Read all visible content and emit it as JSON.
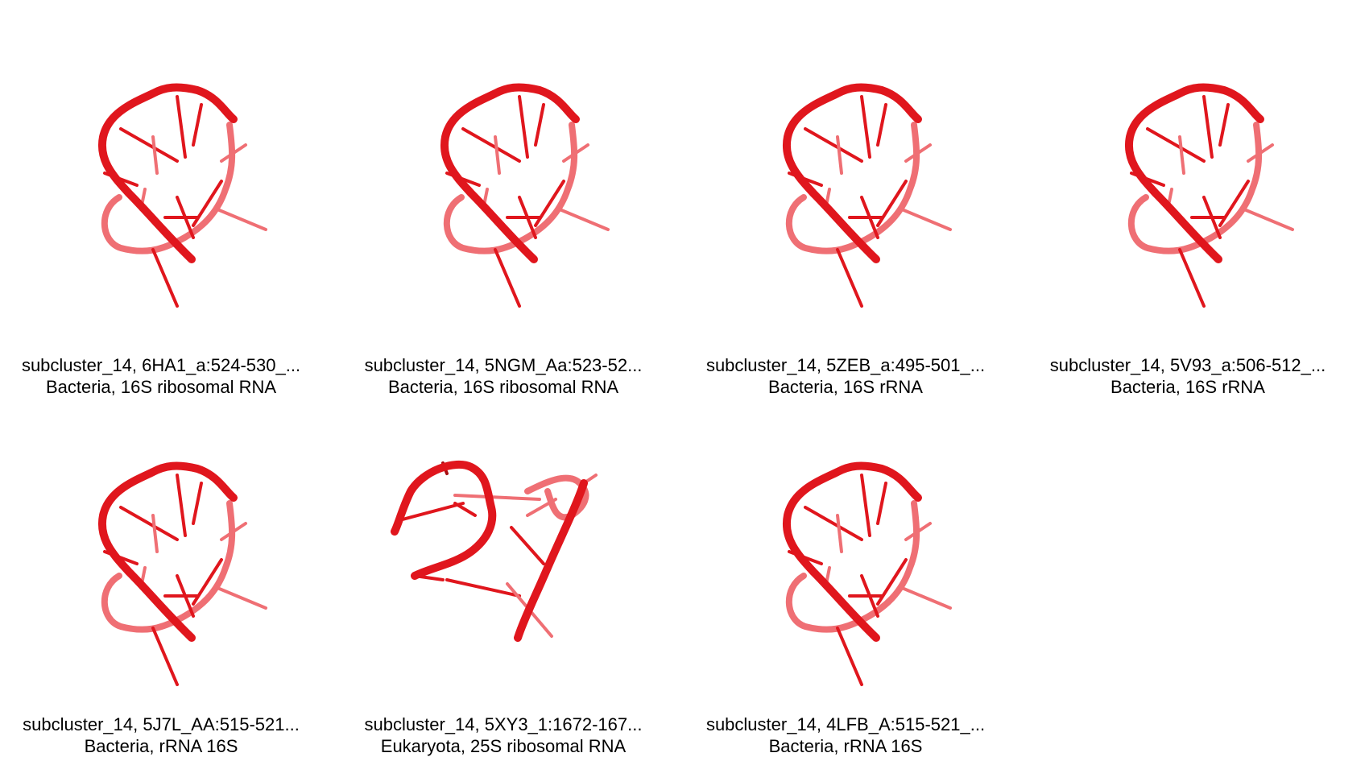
{
  "colors": {
    "strand": "#e0161d",
    "strand_dark": "#a80d12",
    "strand_light": "#ef6f74",
    "caption": "#000000"
  },
  "panels": [
    {
      "line1": "subcluster_14, 6HA1_a:524-530_...",
      "line2": "Bacteria, 16S ribosomal RNA",
      "variant": "loop"
    },
    {
      "line1": "subcluster_14, 5NGM_Aa:523-52...",
      "line2": "Bacteria, 16S ribosomal RNA",
      "variant": "loop"
    },
    {
      "line1": "subcluster_14, 5ZEB_a:495-501_...",
      "line2": "Bacteria, 16S rRNA",
      "variant": "loop"
    },
    {
      "line1": "subcluster_14, 5V93_a:506-512_...",
      "line2": "Bacteria, 16S rRNA",
      "variant": "loop"
    },
    {
      "line1": "subcluster_14, 5J7L_AA:515-521...",
      "line2": "Bacteria, rRNA 16S",
      "variant": "loop"
    },
    {
      "line1": "subcluster_14, 5XY3_1:1672-167...",
      "line2": "Eukaryota, 25S ribosomal RNA",
      "variant": "open"
    },
    {
      "line1": "subcluster_14, 4LFB_A:515-521_...",
      "line2": "Bacteria, rRNA 16S",
      "variant": "loop"
    }
  ]
}
